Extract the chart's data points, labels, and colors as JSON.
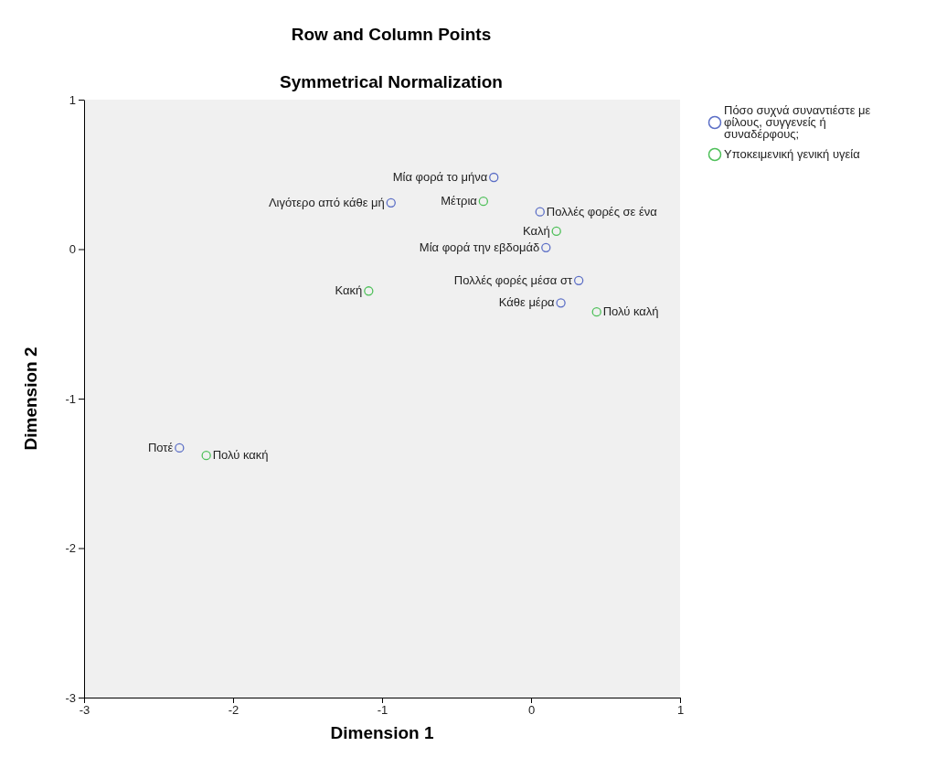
{
  "chart_data": {
    "type": "scatter",
    "title": "Row and Column Points",
    "subtitle": "Symmetrical Normalization",
    "xlabel": "Dimension 1",
    "ylabel": "Dimension 2",
    "xlim": [
      -3,
      1
    ],
    "ylim": [
      -3,
      1
    ],
    "xticks": [
      -3,
      -2,
      -1,
      0,
      1
    ],
    "yticks": [
      -3,
      -2,
      -1,
      0,
      1
    ],
    "grid": false,
    "legend": "top right",
    "marker": "circle",
    "series": [
      {
        "name": "Πόσο συχνά συναντιέστε με φίλους, συγγενείς ή συναδέρφους;",
        "color": "#5c6fc6",
        "x": [
          -0.25,
          -0.94,
          0.06,
          0.1,
          0.32,
          0.2,
          -2.36
        ],
        "values": [
          0.48,
          0.31,
          0.25,
          0.01,
          -0.21,
          -0.36,
          -1.33
        ],
        "value_labels": [
          "Μία φορά το μήνα",
          "Λιγότερο από κάθε μή",
          "Πολλές φορές σε ένα",
          "Μία φορά την εβδομάδ",
          "Πολλές φορές μέσα στ",
          "Κάθε μέρα",
          "Ποτέ"
        ]
      },
      {
        "name": "Υποκειμενική γενική υγεία",
        "color": "#4fc05a",
        "x": [
          -0.32,
          0.17,
          -1.09,
          0.44,
          -2.18
        ],
        "values": [
          0.32,
          0.12,
          -0.28,
          -0.42,
          -1.38
        ],
        "value_labels": [
          "Μέτρια",
          "Καλή",
          "Κακή",
          "Πολύ καλή",
          "Πολύ κακή"
        ]
      }
    ]
  }
}
